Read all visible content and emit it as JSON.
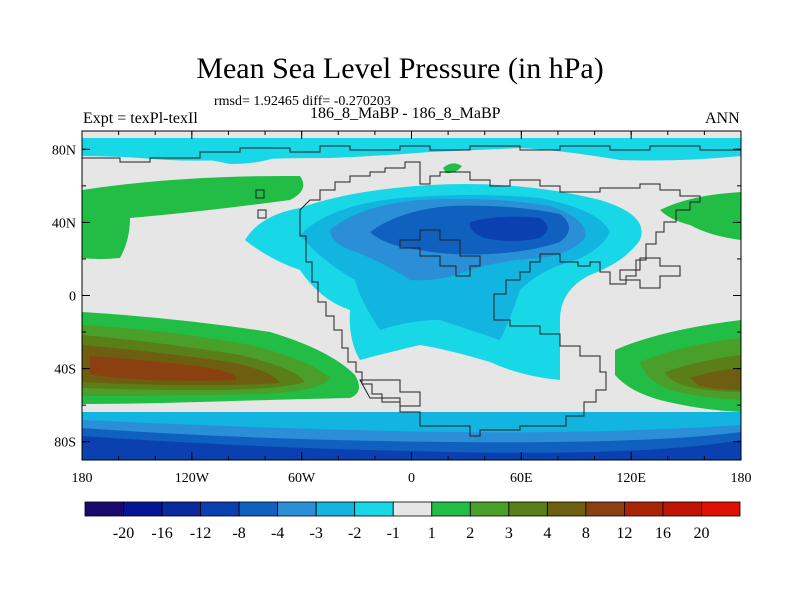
{
  "title": "Mean Sea Level Pressure (in hPa)",
  "stats": "rmsd= 1.92465 diff= -0.270203",
  "left_label": "Expt = texPl-texIl",
  "center_label": "186_8_MaBP - 186_8_MaBP",
  "right_label": "ANN",
  "x_ticks": [
    "180",
    "120W",
    "60W",
    "0",
    "60E",
    "120E",
    "180"
  ],
  "x_tick_degrees": [
    -180,
    -120,
    -60,
    0,
    60,
    120,
    180
  ],
  "y_ticks": [
    "80N",
    "40N",
    "0",
    "40S",
    "80S"
  ],
  "y_tick_degrees": [
    80,
    40,
    0,
    -40,
    -80
  ],
  "colorbar": {
    "labels": [
      "-20",
      "-16",
      "-12",
      "-8",
      "-4",
      "-3",
      "-2",
      "-1",
      "1",
      "2",
      "3",
      "4",
      "8",
      "12",
      "16",
      "20"
    ],
    "colors": [
      "#1a0a6e",
      "#071496",
      "#0a2a9e",
      "#0a40b0",
      "#1060c0",
      "#2a8fd6",
      "#12b4e0",
      "#18d8e8",
      "#e6e6e6",
      "#22bd45",
      "#4a9e2a",
      "#5a7e18",
      "#6e5e10",
      "#8a4010",
      "#aa2408",
      "#c01404",
      "#e01002"
    ]
  },
  "colors": {
    "ocean_background": "#e6e6e6",
    "coastline": "#202020"
  }
}
